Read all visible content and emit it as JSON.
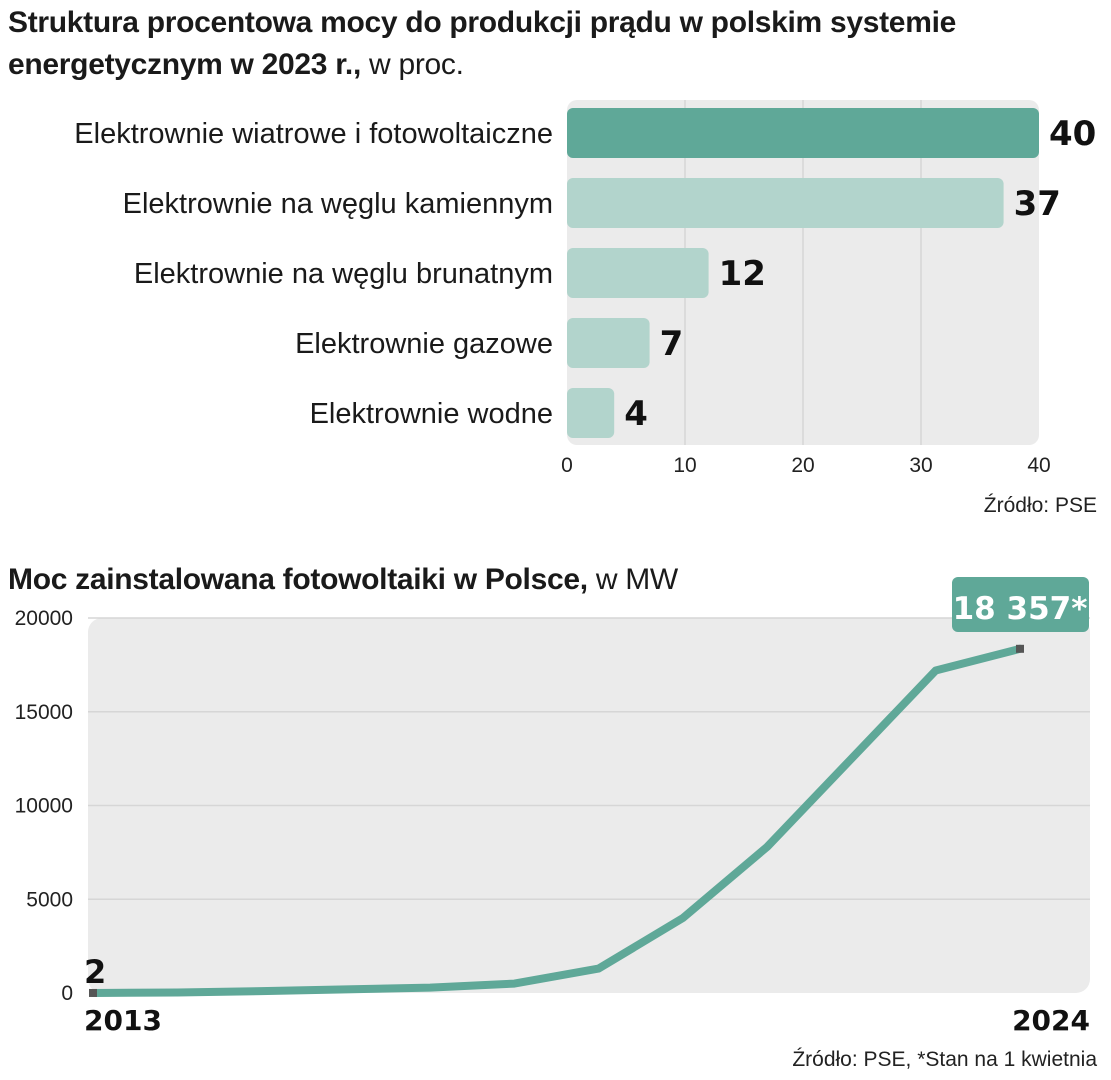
{
  "chart_data": [
    {
      "type": "bar",
      "orientation": "horizontal",
      "title": "Struktura procentowa mocy do produkcji prądu w polskim systemie energetycznym w 2023 r.,",
      "unit": "w proc.",
      "categories": [
        "Elektrownie wiatrowe i fotowoltaiczne",
        "Elektrownie na węglu kamiennym",
        "Elektrownie na węglu brunatnym",
        "Elektrownie gazowe",
        "Elektrownie wodne"
      ],
      "values": [
        40,
        37,
        12,
        7,
        4
      ],
      "value_labels": [
        "40",
        "37",
        "12",
        "7",
        "4"
      ],
      "xlim": [
        0,
        40
      ],
      "xticks": [
        "0",
        "10",
        "20",
        "30",
        "40"
      ],
      "grid": true,
      "highlight_color": "#5fa898",
      "bar_color": "#b2d4cc",
      "source": "Źródło: PSE"
    },
    {
      "type": "line",
      "title": "Moc zainstalowana fotowoltaiki w Polsce,",
      "unit": "w MW",
      "x": [
        2013,
        2014,
        2015,
        2016,
        2017,
        2018,
        2019,
        2020,
        2021,
        2022,
        2023,
        2024
      ],
      "values": [
        2,
        25,
        100,
        190,
        290,
        500,
        1300,
        4000,
        7800,
        12500,
        17200,
        18357
      ],
      "x_labels": [
        "2013",
        "2024"
      ],
      "yticks": [
        "0",
        "5000",
        "10000",
        "15000",
        "20000"
      ],
      "ylim": [
        0,
        20000
      ],
      "start_label": "2",
      "end_label": "18 357*",
      "grid": true,
      "line_color": "#5fa898",
      "source": "Źródło: PSE, *Stan na 1 kwietnia"
    }
  ]
}
